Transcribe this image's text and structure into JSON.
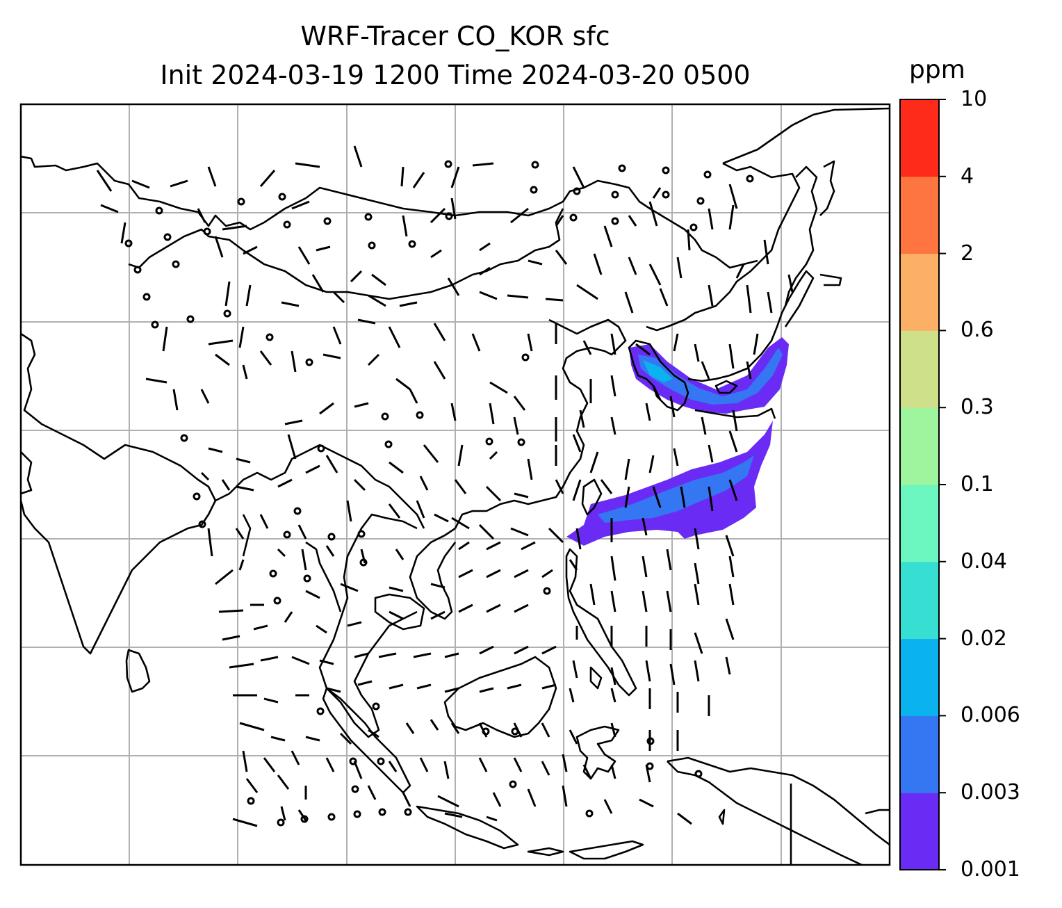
{
  "title": {
    "line1": "WRF-Tracer CO_KOR sfc",
    "line2": "Init 2024-03-19 1200 Time 2024-03-20 0500"
  },
  "colorbar": {
    "unit": "ppm",
    "levels": [
      "0.001",
      "0.003",
      "0.006",
      "0.02",
      "0.04",
      "0.1",
      "0.3",
      "0.6",
      "2",
      "4",
      "10"
    ],
    "colors": [
      "#6a2cf5",
      "#3576f2",
      "#0bb3ee",
      "#36dfd2",
      "#6cf7c0",
      "#9ef59e",
      "#cfe08a",
      "#fbb066",
      "#fe7540",
      "#fe2a1a"
    ]
  },
  "map": {
    "region": "East / Southeast Asia",
    "gridlines": true,
    "plume_fill_colors": [
      "#6a2cf5",
      "#3576f2",
      "#0bb3ee"
    ]
  }
}
